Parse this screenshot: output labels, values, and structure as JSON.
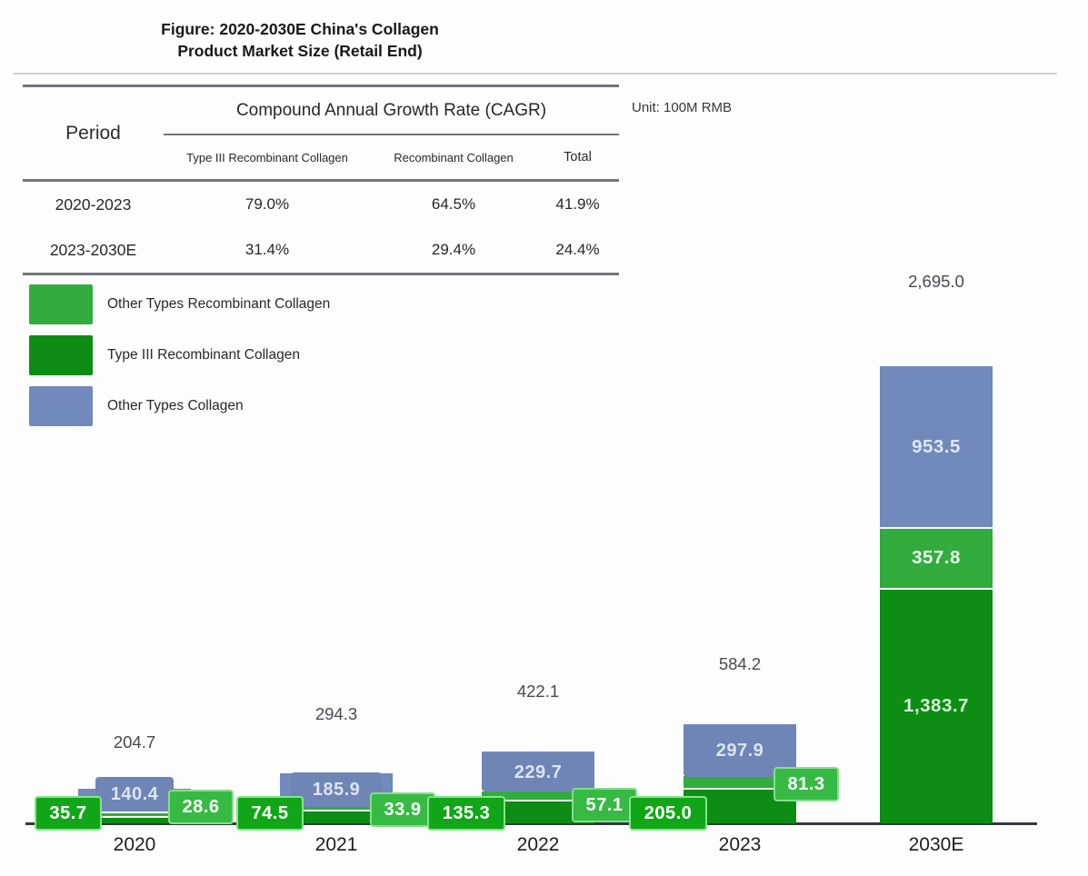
{
  "title": {
    "line1": "Figure: 2020-2030E China's Collagen",
    "line2": "Product Market Size (Retail End)"
  },
  "unit_label": "Unit: 100M RMB",
  "table": {
    "period_header": "Period",
    "cagr_header": "Compound Annual Growth Rate (CAGR)",
    "sub_headers": [
      "Type III Recombinant Collagen",
      "Recombinant Collagen",
      "Total"
    ],
    "rows": [
      {
        "period": "2020-2023",
        "values": [
          "79.0%",
          "64.5%",
          "41.9%"
        ]
      },
      {
        "period": "2023-2030E",
        "values": [
          "31.4%",
          "29.4%",
          "24.4%"
        ]
      }
    ]
  },
  "legend": [
    {
      "label": "Other Types Recombinant Collagen",
      "color": "#33ac3e"
    },
    {
      "label": "Type III Recombinant Collagen",
      "color": "#0e8d14"
    },
    {
      "label": "Other Types Collagen",
      "color": "#7189bb"
    }
  ],
  "chart_data": {
    "type": "bar",
    "stacked": true,
    "grid": false,
    "legend_position": "top-left",
    "title": "Figure: 2020-2030E China's Collagen Product Market Size (Retail End)",
    "unit": "100M RMB",
    "categories": [
      "2020",
      "2021",
      "2022",
      "2023",
      "2030E"
    ],
    "series": [
      {
        "name": "Type III Recombinant Collagen",
        "color": "#0e8d14",
        "values": [
          35.7,
          74.5,
          135.3,
          205.0,
          1383.7
        ],
        "labels": [
          "35.7",
          "74.5",
          "135.3",
          "205.0",
          "1,383.7"
        ]
      },
      {
        "name": "Other Types Recombinant Collagen",
        "color": "#33ac3e",
        "values": [
          28.6,
          33.9,
          57.1,
          81.3,
          357.8
        ],
        "labels": [
          "28.6",
          "33.9",
          "57.1",
          "81.3",
          "357.8"
        ]
      },
      {
        "name": "Other Types Collagen",
        "color": "#7189bb",
        "values": [
          140.4,
          185.9,
          229.7,
          297.9,
          953.5
        ],
        "labels": [
          "140.4",
          "185.9",
          "229.7",
          "297.9",
          "953.5"
        ]
      }
    ],
    "totals": [
      204.7,
      294.3,
      422.1,
      584.2,
      2695.0
    ],
    "total_labels": [
      "204.7",
      "294.3",
      "422.1",
      "584.2",
      "2,695.0"
    ]
  }
}
